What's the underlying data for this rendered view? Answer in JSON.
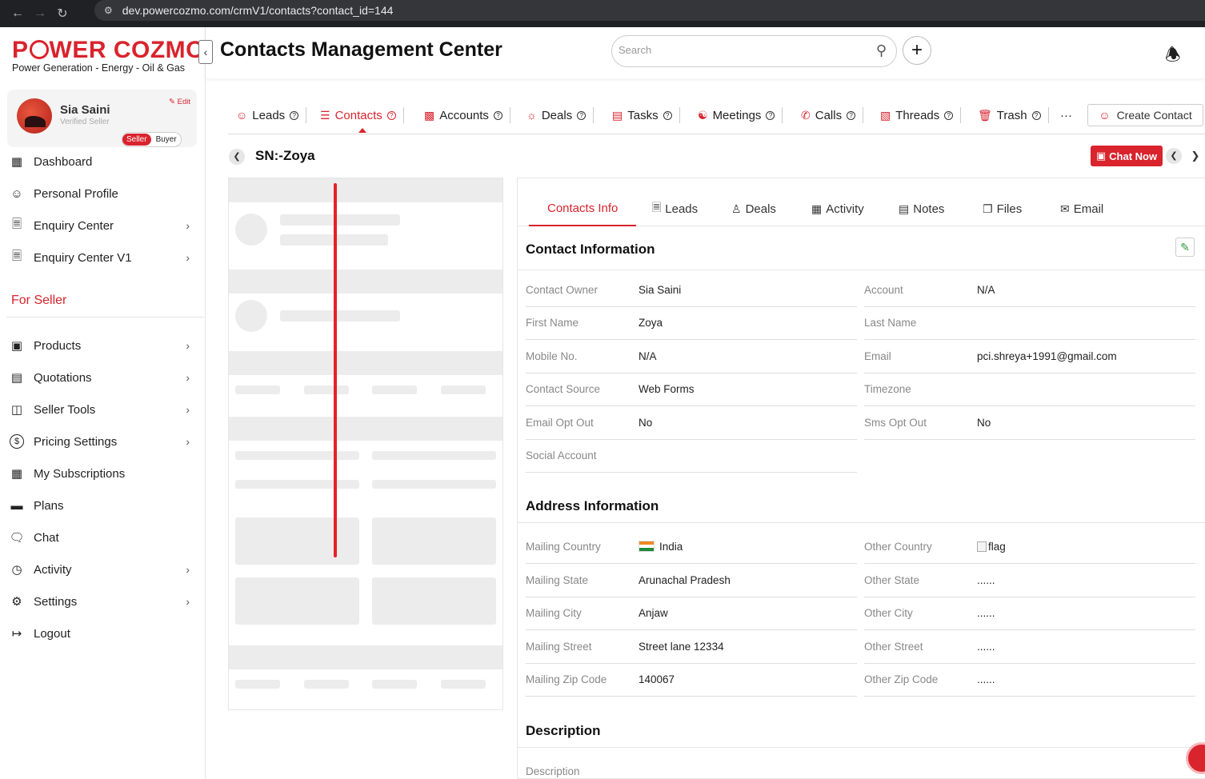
{
  "browser": {
    "url": "dev.powercozmo.com/crmV1/contacts?contact_id=144"
  },
  "brand": {
    "name_part1": "P",
    "name_part2": "WER COZMO",
    "tagline": "Power Generation - Energy - Oil & Gas",
    "accent": "#d9232d"
  },
  "profile": {
    "name": "Sia Saini",
    "subtitle": "Verified Seller",
    "edit_label": "Edit",
    "role_seller": "Seller",
    "role_buyer": "Buyer"
  },
  "sidebar": {
    "top_items": [
      {
        "label": "Dashboard",
        "icon": "grid-icon"
      },
      {
        "label": "Personal Profile",
        "icon": "user-circle-icon"
      },
      {
        "label": "Enquiry Center",
        "icon": "document-icon",
        "has_children": true
      },
      {
        "label": "Enquiry Center V1",
        "icon": "document-icon",
        "has_children": true
      }
    ],
    "section_title": "For Seller",
    "seller_items": [
      {
        "label": "Products",
        "icon": "image-icon",
        "has_children": true
      },
      {
        "label": "Quotations",
        "icon": "message-icon",
        "has_children": true
      },
      {
        "label": "Seller Tools",
        "icon": "tools-icon",
        "has_children": true
      },
      {
        "label": "Pricing Settings",
        "icon": "dollar-icon",
        "has_children": true
      },
      {
        "label": "My Subscriptions",
        "icon": "subscription-icon",
        "has_children": false
      },
      {
        "label": "Plans",
        "icon": "card-icon",
        "has_children": false
      },
      {
        "label": "Chat",
        "icon": "chat-icon",
        "has_children": false
      },
      {
        "label": "Activity",
        "icon": "clock-icon",
        "has_children": true
      },
      {
        "label": "Settings",
        "icon": "gear-icon",
        "has_children": true
      },
      {
        "label": "Logout",
        "icon": "logout-icon",
        "has_children": false
      }
    ]
  },
  "header": {
    "title": "Contacts Management Center",
    "search_placeholder": "Search"
  },
  "module_tabs": [
    {
      "label": "Leads",
      "icon": "lead-icon"
    },
    {
      "label": "Contacts",
      "icon": "contacts-icon",
      "active": true
    },
    {
      "label": "Accounts",
      "icon": "building-icon"
    },
    {
      "label": "Deals",
      "icon": "bulb-icon"
    },
    {
      "label": "Tasks",
      "icon": "clipboard-icon"
    },
    {
      "label": "Meetings",
      "icon": "meeting-icon"
    },
    {
      "label": "Calls",
      "icon": "phone-icon"
    },
    {
      "label": "Threads",
      "icon": "threads-icon"
    },
    {
      "label": "Trash",
      "icon": "trash-icon"
    }
  ],
  "more_label": "···",
  "create_contact_label": "Create Contact",
  "record": {
    "title": "SN:-Zoya",
    "chat_now_label": "Chat Now"
  },
  "detail_tabs": [
    {
      "label": "Contacts Info",
      "active": true
    },
    {
      "label": "Leads",
      "icon": "document-icon"
    },
    {
      "label": "Deals",
      "icon": "users-icon"
    },
    {
      "label": "Activity",
      "icon": "calendar-icon"
    },
    {
      "label": "Notes",
      "icon": "notes-icon"
    },
    {
      "label": "Files",
      "icon": "files-icon"
    },
    {
      "label": "Email",
      "icon": "mail-icon"
    }
  ],
  "contact_info": {
    "title": "Contact Information",
    "left": [
      {
        "label": "Contact Owner",
        "value": "Sia Saini"
      },
      {
        "label": "First Name",
        "value": "Zoya"
      },
      {
        "label": "Mobile No.",
        "value": "N/A"
      },
      {
        "label": "Contact Source",
        "value": "Web Forms"
      },
      {
        "label": "Email Opt Out",
        "value": "No"
      },
      {
        "label": "Social Account",
        "value": ""
      }
    ],
    "right": [
      {
        "label": "Account",
        "value": "N/A"
      },
      {
        "label": "Last Name",
        "value": ""
      },
      {
        "label": "Email",
        "value": "pci.shreya+1991@gmail.com"
      },
      {
        "label": "Timezone",
        "value": ""
      },
      {
        "label": "Sms Opt Out",
        "value": "No"
      }
    ]
  },
  "address_info": {
    "title": "Address Information",
    "left": [
      {
        "label": "Mailing Country",
        "value": "India"
      },
      {
        "label": "Mailing State",
        "value": "Arunachal Pradesh"
      },
      {
        "label": "Mailing City",
        "value": "Anjaw"
      },
      {
        "label": "Mailing Street",
        "value": "Street lane 12334"
      },
      {
        "label": "Mailing Zip Code",
        "value": "140067"
      }
    ],
    "right": [
      {
        "label": "Other Country",
        "value": "flag"
      },
      {
        "label": "Other State",
        "value": "......"
      },
      {
        "label": "Other City",
        "value": "......"
      },
      {
        "label": "Other Street",
        "value": "......"
      },
      {
        "label": "Other Zip Code",
        "value": "......"
      }
    ]
  },
  "description": {
    "title": "Description",
    "label": "Description"
  }
}
